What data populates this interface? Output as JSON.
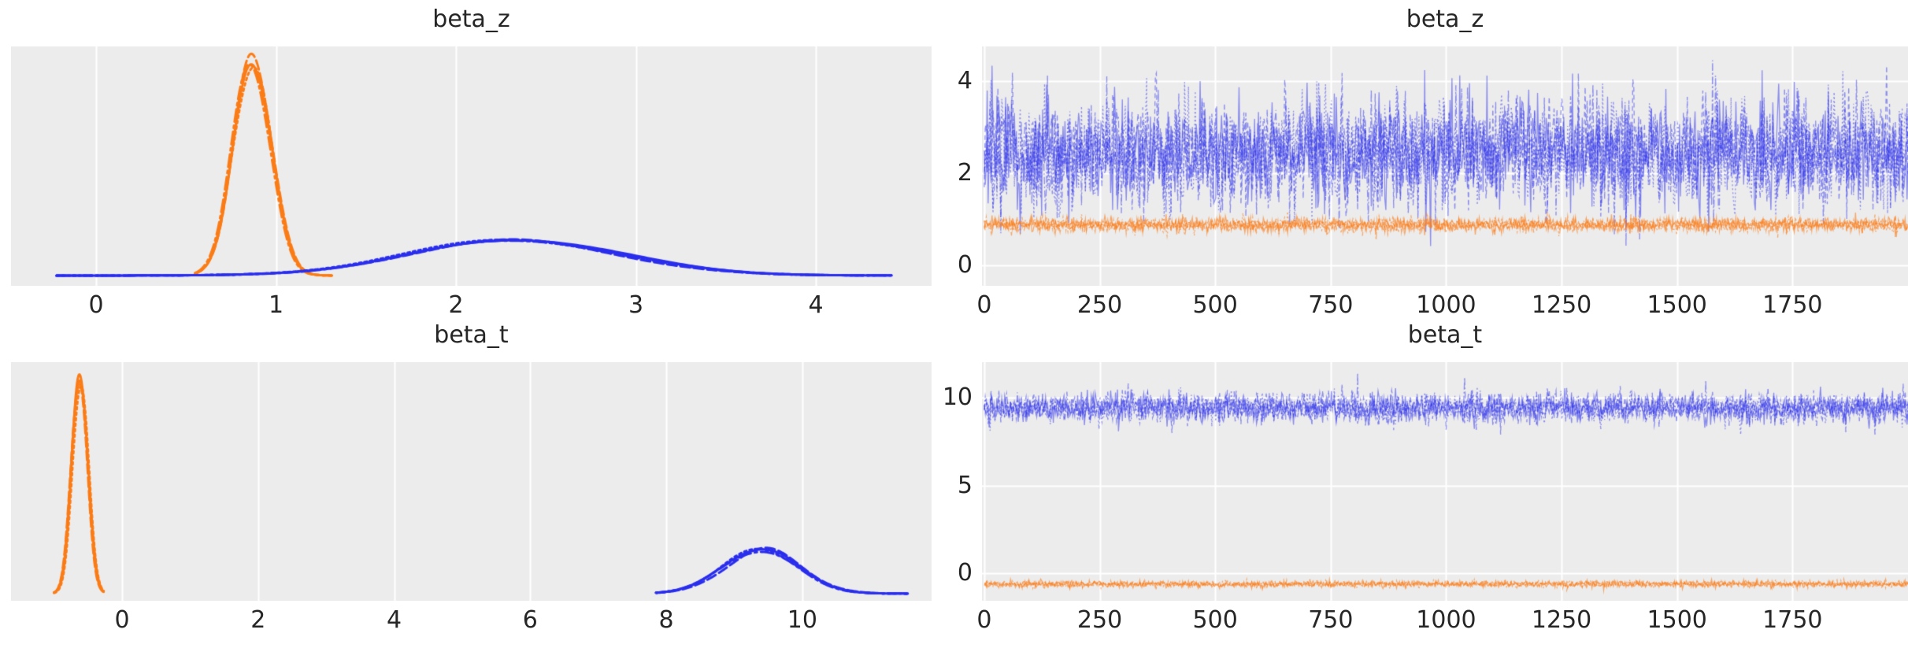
{
  "figure": {
    "kind": "arviz-style posterior trace plot grid (2 variables x density+trace)",
    "background_color": "#ffffff",
    "panel_background_color": "#ececec",
    "gridline_color": "#ffffff",
    "text_color": "#262626",
    "series_colors": {
      "blue": "#2a2eec",
      "orange": "#fa7c17"
    }
  },
  "chart_data": [
    {
      "id": "beta-z-density",
      "type": "area",
      "subtype": "kde-density",
      "title": "beta_z",
      "xlabel": "",
      "ylabel": "",
      "xticks": [
        0,
        1,
        2,
        3,
        4
      ],
      "yticks": [],
      "xlim": [
        -0.473,
        4.643
      ],
      "grid": "vertical",
      "legend_position": "none",
      "n_chains": 4,
      "linestyles": [
        "solid",
        "dashed",
        "dashdot",
        "dotted"
      ],
      "series": [
        {
          "name": "series-orange",
          "color": "#fa7c17",
          "mean": 0.87,
          "sd": 0.105,
          "range": [
            0.55,
            1.31
          ],
          "peak_frac": 0.9
        },
        {
          "name": "series-blue",
          "color": "#2a2eec",
          "mean": 2.36,
          "sd": 0.58,
          "range": [
            -0.22,
            4.42
          ],
          "peak_frac": 0.15
        }
      ]
    },
    {
      "id": "beta-z-trace",
      "type": "line",
      "subtype": "mcmc-trace",
      "title": "beta_z",
      "xlabel": "",
      "ylabel": "",
      "xticks": [
        0,
        250,
        500,
        750,
        1000,
        1250,
        1500,
        1750
      ],
      "yticks": [
        0,
        2,
        4
      ],
      "xlim": [
        -5,
        2000
      ],
      "ylim": [
        -0.444,
        4.75
      ],
      "grid": "both",
      "legend_position": "none",
      "n_chains": 4,
      "linestyles": [
        "solid",
        "dashed",
        "dashdot",
        "dotted"
      ],
      "series": [
        {
          "name": "series-blue",
          "color": "#2a2eec",
          "mean": 2.45,
          "sd": 0.6,
          "clip": [
            0.42,
            4.45
          ],
          "alpha": 0.5
        },
        {
          "name": "series-orange",
          "color": "#fa7c17",
          "mean": 0.88,
          "sd": 0.075,
          "clip": [
            0.55,
            1.25
          ],
          "alpha": 0.6
        }
      ]
    },
    {
      "id": "beta-t-density",
      "type": "area",
      "subtype": "kde-density",
      "title": "beta_t",
      "xlabel": "",
      "ylabel": "",
      "xticks": [
        0,
        2,
        4,
        6,
        8,
        10
      ],
      "yticks": [],
      "xlim": [
        -1.632,
        11.9
      ],
      "grid": "vertical",
      "legend_position": "none",
      "n_chains": 4,
      "linestyles": [
        "solid",
        "dashed",
        "dashdot",
        "dotted"
      ],
      "series": [
        {
          "name": "series-orange",
          "color": "#fa7c17",
          "mean": -0.62,
          "sd": 0.115,
          "range": [
            -1.0,
            -0.27
          ],
          "peak_frac": 0.92
        },
        {
          "name": "series-blue",
          "color": "#2a2eec",
          "mean": 9.42,
          "sd": 0.55,
          "range": [
            7.85,
            11.55
          ],
          "peak_frac": 0.185
        }
      ]
    },
    {
      "id": "beta-t-trace",
      "type": "line",
      "subtype": "mcmc-trace",
      "title": "beta_t",
      "xlabel": "",
      "ylabel": "",
      "xticks": [
        0,
        250,
        500,
        750,
        1000,
        1250,
        1500,
        1750
      ],
      "yticks": [
        0,
        5,
        10
      ],
      "xlim": [
        -5,
        2000
      ],
      "ylim": [
        -1.57,
        12.02
      ],
      "grid": "both",
      "legend_position": "none",
      "n_chains": 4,
      "linestyles": [
        "solid",
        "dashed",
        "dashdot",
        "dotted"
      ],
      "series": [
        {
          "name": "series-blue",
          "color": "#2a2eec",
          "mean": 9.42,
          "sd": 0.42,
          "clip": [
            7.9,
            11.6
          ],
          "alpha": 0.5
        },
        {
          "name": "series-orange",
          "color": "#fa7c17",
          "mean": -0.62,
          "sd": 0.09,
          "clip": [
            -1.02,
            -0.25
          ],
          "alpha": 0.6
        }
      ]
    }
  ]
}
